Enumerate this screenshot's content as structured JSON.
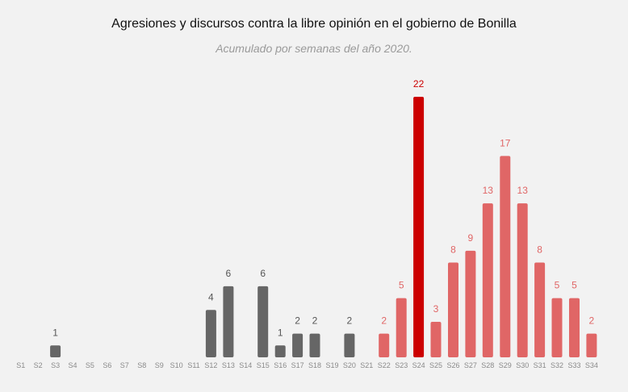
{
  "chart_data": {
    "type": "bar",
    "title": "Agresiones y discursos contra la libre opinión en el gobierno de Bonilla",
    "subtitle": "Acumulado por semanas del año 2020.",
    "xlabel": "",
    "ylabel": "",
    "ylim": [
      0,
      22
    ],
    "grid": false,
    "legend": "none",
    "categories": [
      "S1",
      "S2",
      "S3",
      "S4",
      "S5",
      "S6",
      "S7",
      "S8",
      "S9",
      "S10",
      "S11",
      "S12",
      "S13",
      "S14",
      "S15",
      "S16",
      "S17",
      "S18",
      "S19",
      "S20",
      "S21",
      "S22",
      "S23",
      "S24",
      "S25",
      "S26",
      "S27",
      "S28",
      "S29",
      "S30",
      "S31",
      "S32",
      "S33",
      "S34"
    ],
    "values": [
      0,
      0,
      1,
      0,
      0,
      0,
      0,
      0,
      0,
      0,
      0,
      4,
      6,
      0,
      6,
      1,
      2,
      2,
      0,
      2,
      0,
      2,
      5,
      22,
      3,
      8,
      9,
      13,
      17,
      13,
      8,
      5,
      5,
      2
    ],
    "bar_colors": [
      "#666666",
      "#666666",
      "#666666",
      "#666666",
      "#666666",
      "#666666",
      "#666666",
      "#666666",
      "#666666",
      "#666666",
      "#666666",
      "#666666",
      "#666666",
      "#666666",
      "#666666",
      "#666666",
      "#666666",
      "#666666",
      "#666666",
      "#666666",
      "#666666",
      "#e06666",
      "#e06666",
      "#cc0000",
      "#e06666",
      "#e06666",
      "#e06666",
      "#e06666",
      "#e06666",
      "#e06666",
      "#e06666",
      "#e06666",
      "#e06666",
      "#e06666"
    ],
    "label_colors": [
      "#555555",
      "#555555",
      "#555555",
      "#555555",
      "#555555",
      "#555555",
      "#555555",
      "#555555",
      "#555555",
      "#555555",
      "#555555",
      "#555555",
      "#555555",
      "#555555",
      "#555555",
      "#555555",
      "#555555",
      "#555555",
      "#555555",
      "#555555",
      "#555555",
      "#e06666",
      "#e06666",
      "#cc0000",
      "#e06666",
      "#e06666",
      "#e06666",
      "#e06666",
      "#e06666",
      "#e06666",
      "#e06666",
      "#e06666",
      "#e06666",
      "#e06666"
    ]
  },
  "colors": {
    "background": "#f2f2f2",
    "early_period": "#666666",
    "later_period": "#e06666",
    "highlight": "#cc0000"
  }
}
